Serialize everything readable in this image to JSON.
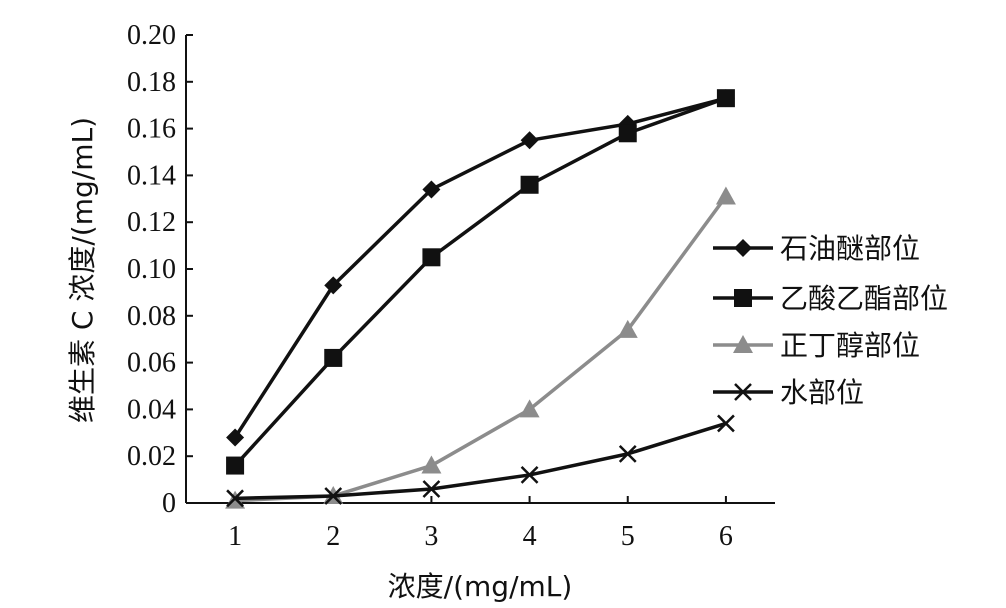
{
  "chart_data": {
    "type": "line",
    "xlabel": "浓度/(mg/mL)",
    "ylabel": "维生素 C 浓度/(mg/mL)",
    "x": [
      1,
      2,
      3,
      4,
      5,
      6
    ],
    "xlim": [
      0.5,
      6.5
    ],
    "ylim": [
      0,
      0.2
    ],
    "yticks": [
      "0",
      "0.02",
      "0.04",
      "0.06",
      "0.08",
      "0.10",
      "0.12",
      "0.14",
      "0.16",
      "0.18",
      "0.20"
    ],
    "grid": false,
    "legend_position": "right",
    "series": [
      {
        "name": "石油醚部位",
        "marker": "diamond",
        "color": "#111111",
        "values": [
          0.028,
          0.093,
          0.134,
          0.155,
          0.162,
          0.173
        ]
      },
      {
        "name": "乙酸乙酯部位",
        "marker": "square",
        "color": "#111111",
        "values": [
          0.016,
          0.062,
          0.105,
          0.136,
          0.158,
          0.173
        ]
      },
      {
        "name": "正丁醇部位",
        "marker": "triangle",
        "color": "#8c8c8c",
        "values": [
          0.001,
          0.003,
          0.016,
          0.04,
          0.074,
          0.131
        ]
      },
      {
        "name": "水部位",
        "marker": "cross",
        "color": "#111111",
        "values": [
          0.002,
          0.003,
          0.006,
          0.012,
          0.021,
          0.034
        ]
      }
    ]
  }
}
